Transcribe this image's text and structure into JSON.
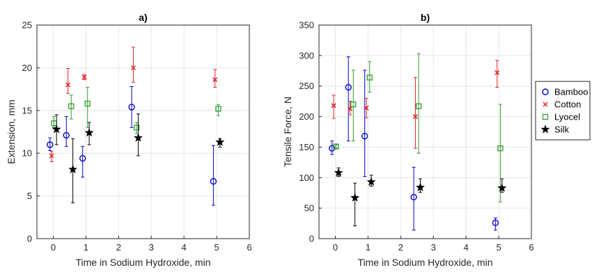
{
  "series_style": [
    {
      "name": "Bamboo",
      "color": "#0000cc",
      "marker": "circle"
    },
    {
      "name": "Cotton",
      "color": "#e0242a",
      "marker": "x"
    },
    {
      "name": "Lyocel",
      "color": "#2e9e2e",
      "marker": "square"
    },
    {
      "name": "Silk",
      "color": "#000000",
      "marker": "star"
    }
  ],
  "chart_data": [
    {
      "type": "scatter",
      "title": "a)",
      "xlabel": "Time in Sodium Hydroxide, min",
      "ylabel": "Extension, mm",
      "xlim": [
        -0.5,
        6
      ],
      "ylim": [
        0,
        25
      ],
      "xticks": [
        0,
        1,
        2,
        3,
        4,
        5,
        6
      ],
      "yticks": [
        0,
        5,
        10,
        15,
        20,
        25
      ],
      "grid": true,
      "error_bars": true,
      "series": [
        {
          "name": "Bamboo",
          "points": [
            {
              "x": -0.1,
              "y": 11.0,
              "lo": 10.3,
              "hi": 11.8
            },
            {
              "x": 0.4,
              "y": 12.1,
              "lo": 10.8,
              "hi": 14.3
            },
            {
              "x": 0.9,
              "y": 9.4,
              "lo": 7.2,
              "hi": 10.8
            },
            {
              "x": 2.4,
              "y": 15.4,
              "lo": 13.0,
              "hi": 17.8
            },
            {
              "x": 4.9,
              "y": 6.7,
              "lo": 3.9,
              "hi": 10.9
            }
          ]
        },
        {
          "name": "Cotton",
          "points": [
            {
              "x": -0.05,
              "y": 9.7,
              "lo": 9.0,
              "hi": 10.2
            },
            {
              "x": 0.45,
              "y": 18.0,
              "lo": 17.0,
              "hi": 19.9
            },
            {
              "x": 0.95,
              "y": 18.9,
              "lo": 18.6,
              "hi": 19.2
            },
            {
              "x": 2.45,
              "y": 20.0,
              "lo": 18.3,
              "hi": 22.4
            },
            {
              "x": 4.95,
              "y": 18.6,
              "lo": 17.7,
              "hi": 19.8
            }
          ]
        },
        {
          "name": "Lyocel",
          "points": [
            {
              "x": 0.02,
              "y": 13.5,
              "lo": 13.0,
              "hi": 14.3
            },
            {
              "x": 0.55,
              "y": 15.5,
              "lo": 14.0,
              "hi": 16.8
            },
            {
              "x": 1.05,
              "y": 15.8,
              "lo": 13.0,
              "hi": 17.7
            },
            {
              "x": 2.55,
              "y": 13.0,
              "lo": 12.3,
              "hi": 13.6
            },
            {
              "x": 5.05,
              "y": 15.2,
              "lo": 14.4,
              "hi": 15.7
            }
          ]
        },
        {
          "name": "Silk",
          "points": [
            {
              "x": 0.1,
              "y": 12.8,
              "lo": 11.0,
              "hi": 14.5
            },
            {
              "x": 0.6,
              "y": 8.1,
              "lo": 4.2,
              "hi": 11.7
            },
            {
              "x": 1.1,
              "y": 12.4,
              "lo": 11.0,
              "hi": 13.6
            },
            {
              "x": 2.6,
              "y": 11.8,
              "lo": 9.7,
              "hi": 14.6
            },
            {
              "x": 5.1,
              "y": 11.3,
              "lo": 10.7,
              "hi": 11.7
            }
          ]
        }
      ]
    },
    {
      "type": "scatter",
      "title": "b)",
      "xlabel": "Time in Sodium Hydroxide, min",
      "ylabel": "Tensile Force, N",
      "xlim": [
        -0.5,
        6
      ],
      "ylim": [
        0,
        350
      ],
      "xticks": [
        0,
        1,
        2,
        3,
        4,
        5,
        6
      ],
      "yticks": [
        0,
        50,
        100,
        150,
        200,
        250,
        300,
        350
      ],
      "grid": true,
      "error_bars": true,
      "legend": {
        "position": "outside-right",
        "entries": [
          "Bamboo",
          "Cotton",
          "Lyocel",
          "Silk"
        ]
      },
      "series": [
        {
          "name": "Bamboo",
          "points": [
            {
              "x": -0.1,
              "y": 148,
              "lo": 138,
              "hi": 160
            },
            {
              "x": 0.4,
              "y": 248,
              "lo": 160,
              "hi": 298
            },
            {
              "x": 0.9,
              "y": 168,
              "lo": 102,
              "hi": 276
            },
            {
              "x": 2.4,
              "y": 68,
              "lo": 14,
              "hi": 117
            },
            {
              "x": 4.9,
              "y": 26,
              "lo": 14,
              "hi": 34
            }
          ]
        },
        {
          "name": "Cotton",
          "points": [
            {
              "x": -0.05,
              "y": 218,
              "lo": 197,
              "hi": 235
            },
            {
              "x": 0.45,
              "y": 213,
              "lo": 203,
              "hi": 225
            },
            {
              "x": 0.95,
              "y": 214,
              "lo": 198,
              "hi": 230
            },
            {
              "x": 2.45,
              "y": 200,
              "lo": 148,
              "hi": 264
            },
            {
              "x": 4.95,
              "y": 272,
              "lo": 248,
              "hi": 292
            }
          ]
        },
        {
          "name": "Lyocel",
          "points": [
            {
              "x": 0.02,
              "y": 151,
              "lo": 148,
              "hi": 154
            },
            {
              "x": 0.55,
              "y": 220,
              "lo": 160,
              "hi": 276
            },
            {
              "x": 1.05,
              "y": 264,
              "lo": 240,
              "hi": 290
            },
            {
              "x": 2.55,
              "y": 217,
              "lo": 140,
              "hi": 303
            },
            {
              "x": 5.05,
              "y": 148,
              "lo": 60,
              "hi": 220
            }
          ]
        },
        {
          "name": "Silk",
          "points": [
            {
              "x": 0.1,
              "y": 108,
              "lo": 102,
              "hi": 116
            },
            {
              "x": 0.6,
              "y": 67,
              "lo": 21,
              "hi": 91
            },
            {
              "x": 1.1,
              "y": 93,
              "lo": 86,
              "hi": 104
            },
            {
              "x": 2.6,
              "y": 84,
              "lo": 76,
              "hi": 98
            },
            {
              "x": 5.1,
              "y": 83,
              "lo": 76,
              "hi": 98
            }
          ]
        }
      ]
    }
  ]
}
